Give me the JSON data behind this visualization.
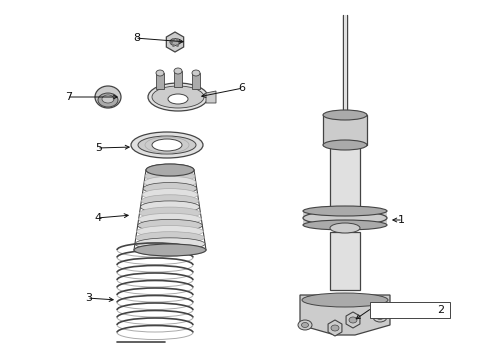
{
  "bg_color": "#ffffff",
  "line_color": "#444444",
  "text_color": "#111111",
  "gray_dark": "#777777",
  "gray_mid": "#aaaaaa",
  "gray_light": "#cccccc",
  "gray_lighter": "#e0e0e0"
}
